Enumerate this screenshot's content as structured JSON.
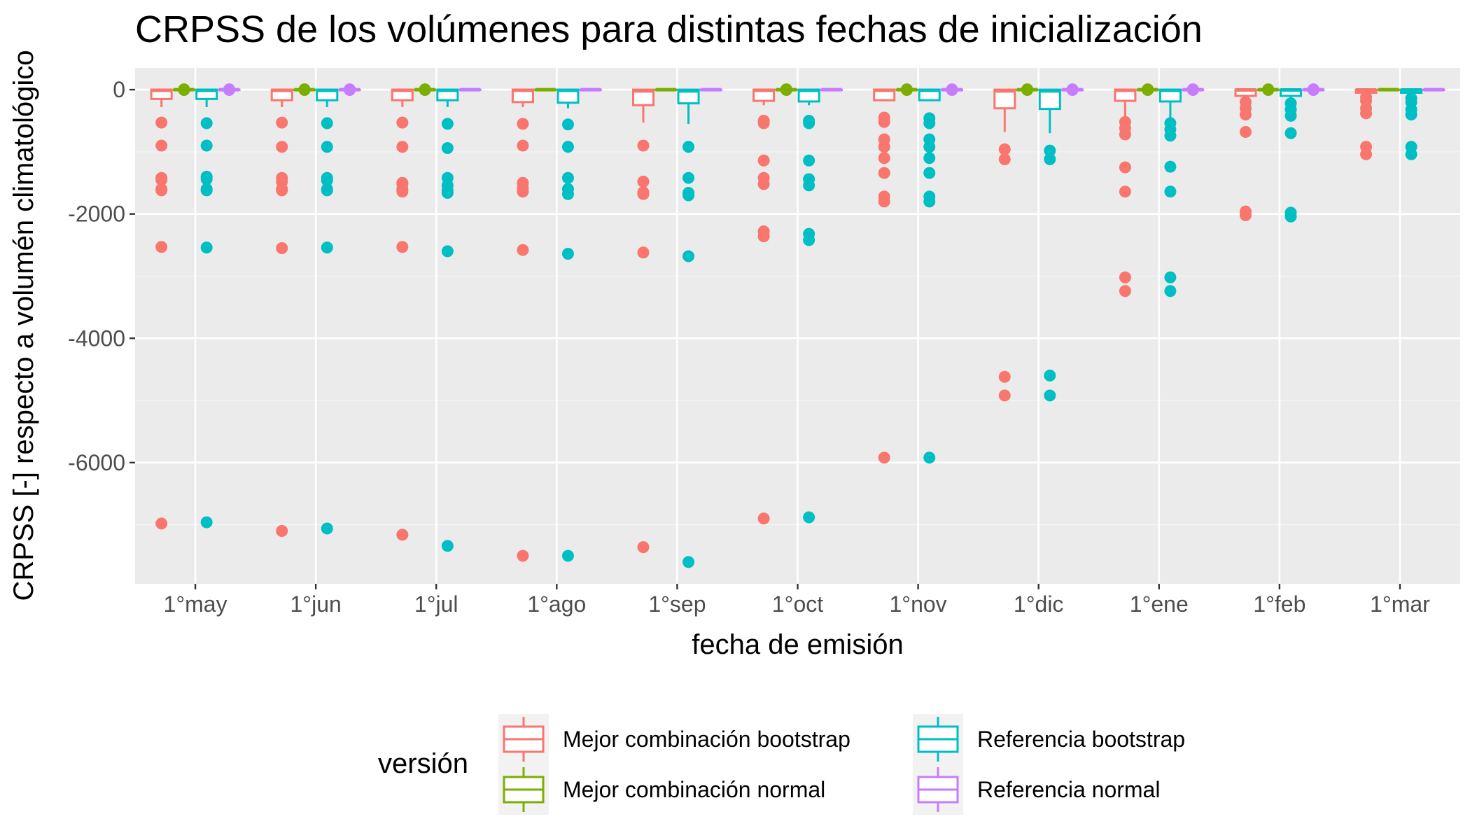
{
  "chart_data": {
    "type": "boxplot",
    "title": "CRPSS de los volúmenes para distintas fechas de inicialización",
    "xlabel": "fecha de emisión",
    "ylabel": "CRPSS [-] respecto a volumén climatológico",
    "categories": [
      "1°may",
      "1°jun",
      "1°jul",
      "1°ago",
      "1°sep",
      "1°oct",
      "1°nov",
      "1°dic",
      "1°ene",
      "1°feb",
      "1°mar"
    ],
    "ylim": [
      -7950,
      350
    ],
    "yticks": [
      0,
      -2000,
      -4000,
      -6000
    ],
    "ytick_labels": [
      "0",
      "-2000",
      "-4000",
      "-6000"
    ],
    "grid": true,
    "legend": {
      "title": "versión",
      "position": "bottom"
    },
    "series": [
      {
        "name": "Mejor combinación bootstrap",
        "color": "#F8766D",
        "boxes": [
          {
            "q1": -150,
            "median": -10,
            "q3": 0,
            "lower": -280,
            "upper": 0
          },
          {
            "q1": -170,
            "median": -10,
            "q3": 0,
            "lower": -280,
            "upper": 0
          },
          {
            "q1": -170,
            "median": -10,
            "q3": 0,
            "lower": -280,
            "upper": 0
          },
          {
            "q1": -200,
            "median": -10,
            "q3": 0,
            "lower": -280,
            "upper": 0
          },
          {
            "q1": -250,
            "median": -20,
            "q3": 0,
            "lower": -530,
            "upper": 0
          },
          {
            "q1": -180,
            "median": -10,
            "q3": 0,
            "lower": -250,
            "upper": 0
          },
          {
            "q1": -170,
            "median": -10,
            "q3": 0,
            "lower": -170,
            "upper": 0
          },
          {
            "q1": -300,
            "median": -20,
            "q3": 0,
            "lower": -680,
            "upper": 0
          },
          {
            "q1": -180,
            "median": -10,
            "q3": 0,
            "lower": -450,
            "upper": 0
          },
          {
            "q1": -100,
            "median": -5,
            "q3": 0,
            "lower": -200,
            "upper": 0
          },
          {
            "q1": -50,
            "median": -5,
            "q3": 0,
            "lower": -60,
            "upper": 0
          }
        ],
        "outliers": [
          [
            -530,
            -900,
            -1420,
            -1450,
            -1600,
            -1620,
            -2530,
            -6980
          ],
          [
            -530,
            -920,
            -1420,
            -1480,
            -1600,
            -1620,
            -2550,
            -7100
          ],
          [
            -530,
            -920,
            -1500,
            -1520,
            -1600,
            -1640,
            -2530,
            -7160
          ],
          [
            -550,
            -900,
            -1500,
            -1580,
            -1640,
            -2580,
            -7500
          ],
          [
            -900,
            -1480,
            -1650,
            -1680,
            -2620,
            -7360
          ],
          [
            -500,
            -540,
            -1140,
            -1420,
            -1520,
            -2280,
            -2360,
            -6900
          ],
          [
            -450,
            -520,
            -800,
            -920,
            -1100,
            -1340,
            -1720,
            -1800,
            -5920
          ],
          [
            -960,
            -1120,
            -4620,
            -4920
          ],
          [
            -520,
            -620,
            -720,
            -1250,
            -1640,
            -3020,
            -3240
          ],
          [
            -200,
            -300,
            -400,
            -680,
            -1960,
            -2020
          ],
          [
            -120,
            -180,
            -300,
            -380,
            -920,
            -1040
          ]
        ]
      },
      {
        "name": "Mejor combinación normal",
        "color": "#7CAE00",
        "boxes": [
          {
            "q1": -3,
            "median": 0,
            "q3": 0,
            "lower": -5,
            "upper": 0
          },
          {
            "q1": -3,
            "median": 0,
            "q3": 0,
            "lower": -5,
            "upper": 0
          },
          {
            "q1": -3,
            "median": 0,
            "q3": 0,
            "lower": -5,
            "upper": 0
          },
          {
            "q1": -3,
            "median": 0,
            "q3": 0,
            "lower": -5,
            "upper": 0
          },
          {
            "q1": -3,
            "median": 0,
            "q3": 0,
            "lower": -5,
            "upper": 0
          },
          {
            "q1": -3,
            "median": 0,
            "q3": 0,
            "lower": -5,
            "upper": 0
          },
          {
            "q1": -3,
            "median": 0,
            "q3": 0,
            "lower": -5,
            "upper": 0
          },
          {
            "q1": -3,
            "median": 0,
            "q3": 0,
            "lower": -5,
            "upper": 0
          },
          {
            "q1": -3,
            "median": 0,
            "q3": 0,
            "lower": -5,
            "upper": 0
          },
          {
            "q1": -3,
            "median": 0,
            "q3": 0,
            "lower": -5,
            "upper": 0
          },
          {
            "q1": -3,
            "median": 0,
            "q3": 0,
            "lower": -5,
            "upper": 0
          }
        ],
        "outliers": [
          [
            -5,
            5
          ],
          [
            -5,
            5
          ],
          [
            -5,
            5
          ],
          [],
          [],
          [
            -5,
            5
          ],
          [
            -5,
            5
          ],
          [
            -5,
            5
          ],
          [
            -5,
            5
          ],
          [
            -5,
            5
          ],
          []
        ]
      },
      {
        "name": "Referencia bootstrap",
        "color": "#00BFC4",
        "boxes": [
          {
            "q1": -150,
            "median": -10,
            "q3": 0,
            "lower": -280,
            "upper": 0
          },
          {
            "q1": -170,
            "median": -10,
            "q3": 0,
            "lower": -280,
            "upper": 0
          },
          {
            "q1": -170,
            "median": -10,
            "q3": 0,
            "lower": -280,
            "upper": 0
          },
          {
            "q1": -210,
            "median": -10,
            "q3": 0,
            "lower": -300,
            "upper": 0
          },
          {
            "q1": -220,
            "median": -20,
            "q3": 0,
            "lower": -550,
            "upper": 0
          },
          {
            "q1": -190,
            "median": -10,
            "q3": 0,
            "lower": -250,
            "upper": 0
          },
          {
            "q1": -170,
            "median": -10,
            "q3": 0,
            "lower": -170,
            "upper": 0
          },
          {
            "q1": -310,
            "median": -20,
            "q3": 0,
            "lower": -700,
            "upper": 0
          },
          {
            "q1": -190,
            "median": -10,
            "q3": 0,
            "lower": -450,
            "upper": 0
          },
          {
            "q1": -100,
            "median": -5,
            "q3": 0,
            "lower": -200,
            "upper": 0
          },
          {
            "q1": -50,
            "median": -5,
            "q3": 0,
            "lower": -60,
            "upper": 0
          }
        ],
        "outliers": [
          [
            -540,
            -900,
            -1400,
            -1440,
            -1600,
            -1620,
            -2540,
            -6960
          ],
          [
            -540,
            -920,
            -1420,
            -1460,
            -1600,
            -1620,
            -2540,
            -7060
          ],
          [
            -550,
            -940,
            -1420,
            -1540,
            -1620,
            -1660,
            -2600,
            -7340
          ],
          [
            -560,
            -920,
            -1420,
            -1600,
            -1680,
            -2640,
            -7500
          ],
          [
            -920,
            -1420,
            -1660,
            -1700,
            -2680,
            -7600
          ],
          [
            -500,
            -540,
            -1140,
            -1440,
            -1540,
            -2320,
            -2420,
            -6880
          ],
          [
            -460,
            -540,
            -800,
            -920,
            -1100,
            -1340,
            -1720,
            -1800,
            -5920
          ],
          [
            -980,
            -1120,
            -4600,
            -4920
          ],
          [
            -540,
            -640,
            -740,
            -1240,
            -1640,
            -3020,
            -3240
          ],
          [
            -220,
            -320,
            -420,
            -700,
            -1980,
            -2040
          ],
          [
            -140,
            -200,
            -320,
            -400,
            -920,
            -1040
          ]
        ]
      },
      {
        "name": "Referencia normal",
        "color": "#C77CFF",
        "boxes": [
          {
            "q1": -3,
            "median": 0,
            "q3": 0,
            "lower": -5,
            "upper": 0
          },
          {
            "q1": -3,
            "median": 0,
            "q3": 0,
            "lower": -5,
            "upper": 0
          },
          {
            "q1": -3,
            "median": 0,
            "q3": 0,
            "lower": -5,
            "upper": 0
          },
          {
            "q1": -3,
            "median": 0,
            "q3": 0,
            "lower": -5,
            "upper": 0
          },
          {
            "q1": -3,
            "median": 0,
            "q3": 0,
            "lower": -5,
            "upper": 0
          },
          {
            "q1": -3,
            "median": 0,
            "q3": 0,
            "lower": -5,
            "upper": 0
          },
          {
            "q1": -3,
            "median": 0,
            "q3": 0,
            "lower": -5,
            "upper": 0
          },
          {
            "q1": -3,
            "median": 0,
            "q3": 0,
            "lower": -5,
            "upper": 0
          },
          {
            "q1": -3,
            "median": 0,
            "q3": 0,
            "lower": -5,
            "upper": 0
          },
          {
            "q1": -3,
            "median": 0,
            "q3": 0,
            "lower": -5,
            "upper": 0
          },
          {
            "q1": -3,
            "median": 0,
            "q3": 0,
            "lower": -5,
            "upper": 0
          }
        ],
        "outliers": [
          [
            -5,
            5
          ],
          [
            -5,
            5
          ],
          [],
          [],
          [],
          [],
          [
            -5,
            5
          ],
          [
            -5,
            5
          ],
          [
            -5,
            5
          ],
          [
            -5,
            5
          ],
          []
        ]
      }
    ]
  }
}
